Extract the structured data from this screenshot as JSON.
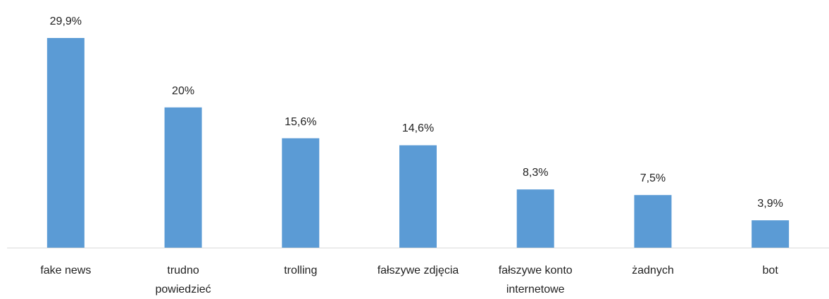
{
  "chart_data": {
    "type": "bar",
    "categories": [
      "fake news",
      "trudno\npowiedzieć",
      "trolling",
      "fałszywe zdjęcia",
      "fałszywe konto\ninternetowe",
      "żadnych",
      "bot"
    ],
    "values": [
      29.9,
      20,
      15.6,
      14.6,
      8.3,
      7.5,
      3.9
    ],
    "value_labels": [
      "29,9%",
      "20%",
      "15,6%",
      "14,6%",
      "8,3%",
      "7,5%",
      "3,9%"
    ],
    "color": "#5b9bd5",
    "ylim": [
      0,
      30
    ]
  }
}
